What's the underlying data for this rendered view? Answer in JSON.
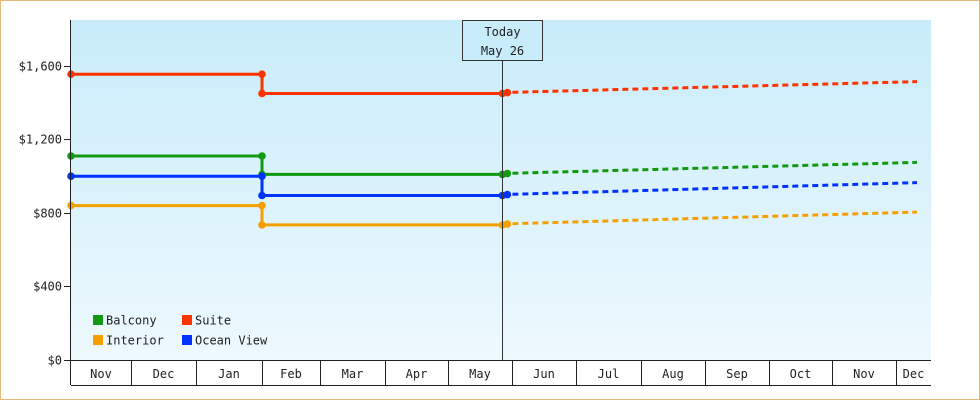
{
  "chart_data": {
    "type": "line",
    "title": "",
    "xlabel": "",
    "ylabel": "",
    "ylim": [
      0,
      1850
    ],
    "y_ticks": [
      {
        "value": 0,
        "label": "$0"
      },
      {
        "value": 400,
        "label": "$400"
      },
      {
        "value": 800,
        "label": "$800"
      },
      {
        "value": 1200,
        "label": "$1,200"
      },
      {
        "value": 1600,
        "label": "$1,600"
      }
    ],
    "months": [
      "Nov",
      "Dec",
      "Jan",
      "Feb",
      "Mar",
      "Apr",
      "May",
      "Jun",
      "Jul",
      "Aug",
      "Sep",
      "Oct",
      "Nov",
      "Dec"
    ],
    "today": {
      "line1": "Today",
      "line2": "May 26",
      "x": 6.85
    },
    "grid": false,
    "legend": "bottom-left",
    "series": [
      {
        "name": "Balcony",
        "color": "#119911",
        "history": [
          [
            0,
            1110
          ],
          [
            3,
            1110
          ],
          [
            3,
            1010
          ],
          [
            6.85,
            1010
          ]
        ],
        "forecast": [
          [
            6.85,
            1015
          ],
          [
            13.6,
            1075
          ]
        ]
      },
      {
        "name": "Suite",
        "color": "#ff3300",
        "history": [
          [
            0,
            1555
          ],
          [
            3,
            1555
          ],
          [
            3,
            1450
          ],
          [
            6.85,
            1450
          ]
        ],
        "forecast": [
          [
            6.85,
            1455
          ],
          [
            13.6,
            1515
          ]
        ]
      },
      {
        "name": "Interior",
        "color": "#f5a000",
        "history": [
          [
            0,
            840
          ],
          [
            3,
            840
          ],
          [
            3,
            735
          ],
          [
            6.85,
            735
          ]
        ],
        "forecast": [
          [
            6.85,
            740
          ],
          [
            13.6,
            805
          ]
        ]
      },
      {
        "name": "Ocean View",
        "color": "#0033ff",
        "history": [
          [
            0,
            1000
          ],
          [
            3,
            1000
          ],
          [
            3,
            895
          ],
          [
            6.85,
            895
          ]
        ],
        "forecast": [
          [
            6.85,
            900
          ],
          [
            13.6,
            965
          ]
        ]
      }
    ]
  }
}
